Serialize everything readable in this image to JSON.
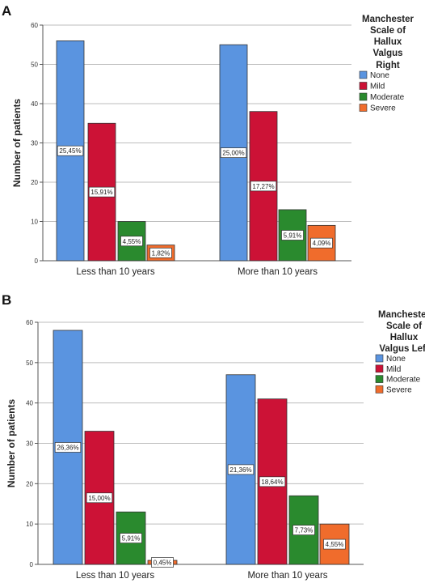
{
  "chart_data": [
    {
      "panel": "A",
      "type": "bar",
      "ylabel": "Number of patients",
      "ylim": [
        0,
        60
      ],
      "yticks": [
        0,
        10,
        20,
        30,
        40,
        50,
        60
      ],
      "categories": [
        "Less than 10 years",
        "More than 10 years"
      ],
      "legend_title": [
        "Manchester",
        "Scale of",
        "Hallux",
        "Valgus",
        "Right"
      ],
      "legend_position": "right",
      "grid": true,
      "series": [
        {
          "name": "None",
          "color": "#5a94e0",
          "values": [
            56,
            55
          ],
          "labels": [
            "25,45%",
            "25,00%"
          ]
        },
        {
          "name": "Mild",
          "color": "#cc1236",
          "values": [
            35,
            38
          ],
          "labels": [
            "15,91%",
            "17,27%"
          ]
        },
        {
          "name": "Moderate",
          "color": "#2a8a2e",
          "values": [
            10,
            13
          ],
          "labels": [
            "4,55%",
            "5,91%"
          ]
        },
        {
          "name": "Severe",
          "color": "#f06c2c",
          "values": [
            4,
            9
          ],
          "labels": [
            "1,82%",
            "4,09%"
          ]
        }
      ]
    },
    {
      "panel": "B",
      "type": "bar",
      "ylabel": "Number of patients",
      "ylim": [
        0,
        60
      ],
      "yticks": [
        0,
        10,
        20,
        30,
        40,
        50,
        60
      ],
      "categories": [
        "Less than 10 years",
        "More than 10 years"
      ],
      "legend_title": [
        "Manchester",
        "Scale of",
        "Hallux",
        "Valgus Left"
      ],
      "legend_position": "right",
      "grid": true,
      "series": [
        {
          "name": "None",
          "color": "#5a94e0",
          "values": [
            58,
            47
          ],
          "labels": [
            "26,36%",
            "21,36%"
          ]
        },
        {
          "name": "Mild",
          "color": "#cc1236",
          "values": [
            33,
            41
          ],
          "labels": [
            "15,00%",
            "18,64%"
          ]
        },
        {
          "name": "Moderate",
          "color": "#2a8a2e",
          "values": [
            13,
            17
          ],
          "labels": [
            "5,91%",
            "7,73%"
          ]
        },
        {
          "name": "Severe",
          "color": "#f06c2c",
          "values": [
            1,
            10
          ],
          "labels": [
            "0,45%",
            "4,55%"
          ]
        }
      ]
    }
  ]
}
